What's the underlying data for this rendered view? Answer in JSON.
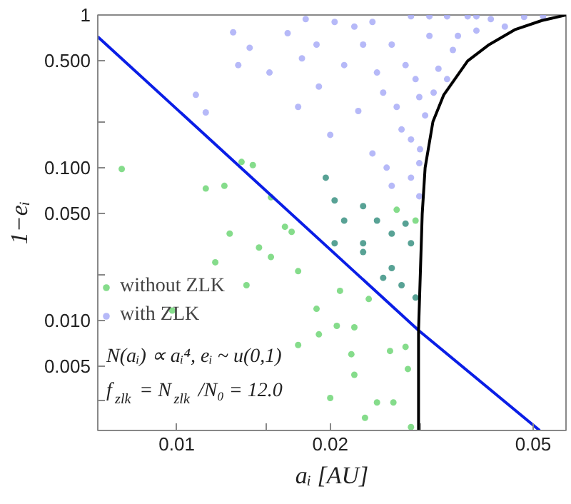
{
  "chart_data": {
    "type": "scatter",
    "xlabel": "aᵢ [AU]",
    "ylabel": "1−eᵢ",
    "log": "xy",
    "grid": false,
    "marker": "circle",
    "legend": "bottom left",
    "xlim": [
      0.007,
      0.058
    ],
    "ylim": [
      0.0019,
      1
    ],
    "xticks": [
      {
        "value": 0.01,
        "label": "0.01"
      },
      {
        "value": 0.015,
        "label": null
      },
      {
        "value": 0.02,
        "label": "0.02"
      },
      {
        "value": 0.03,
        "label": null
      },
      {
        "value": 0.05,
        "label": "0.05"
      }
    ],
    "yticks": [
      {
        "value": 0.003,
        "label": null
      },
      {
        "value": 0.005,
        "label": "0.005"
      },
      {
        "value": 0.01,
        "label": "0.010"
      },
      {
        "value": 0.02,
        "label": null
      },
      {
        "value": 0.05,
        "label": "0.050"
      },
      {
        "value": 0.1,
        "label": "0.100"
      },
      {
        "value": 0.2,
        "label": null
      },
      {
        "value": 0.5,
        "label": "0.500"
      },
      {
        "value": 1,
        "label": "1"
      }
    ],
    "annotations": [
      "N(aᵢ) ∝ aᵢ⁴, eᵢ ~ u(0,1)",
      "f$_{zlk}$ = N$_{zlk}$/N₀ = 12.0"
    ],
    "series": [
      {
        "name": "with ZLK",
        "color": "#a4a8f6",
        "x": [
          0.0109,
          0.0129,
          0.0114,
          0.0139,
          0.0132,
          0.0152,
          0.0165,
          0.0179,
          0.0176,
          0.0188,
          0.0173,
          0.019,
          0.02,
          0.0213,
          0.0223,
          0.0227,
          0.0242,
          0.0254,
          0.0264,
          0.0276,
          0.0288,
          0.0294,
          0.0299,
          0.0307,
          0.0313,
          0.0326,
          0.0339,
          0.0348,
          0.0372,
          0.0387,
          0.0413,
          0.044,
          0.048,
          0.0523,
          0.0258,
          0.027,
          0.0281,
          0.0288,
          0.0299,
          0.03,
          0.0319,
          0.0232,
          0.0247,
          0.0204,
          0.0242,
          0.0313,
          0.0356,
          0.0339,
          0.0387,
          0.0264,
          0.0288,
          0.0299
        ],
        "values": [
          0.3,
          0.77,
          0.23,
          0.61,
          0.47,
          0.42,
          0.76,
          0.94,
          0.52,
          0.64,
          0.25,
          0.34,
          0.164,
          0.47,
          0.84,
          0.235,
          0.124,
          0.31,
          0.64,
          0.178,
          0.98,
          0.38,
          0.107,
          0.22,
          0.73,
          0.445,
          0.98,
          0.59,
          0.98,
          0.79,
          0.94,
          0.84,
          0.97,
          0.98,
          0.1,
          0.25,
          0.47,
          0.153,
          0.29,
          0.132,
          0.31,
          0.64,
          0.42,
          0.9,
          0.9,
          0.98,
          0.73,
          0.38,
          0.98,
          0.076,
          0.086,
          0.065
        ]
      },
      {
        "name": "without ZLK",
        "color": "#66d36e",
        "x": [
          0.0078,
          0.0114,
          0.0124,
          0.0134,
          0.0141,
          0.0127,
          0.0153,
          0.0163,
          0.0168,
          0.0145,
          0.0119,
          0.0137,
          0.0153,
          0.0098,
          0.0173,
          0.0188,
          0.0206,
          0.019,
          0.0173,
          0.0223,
          0.022,
          0.0223,
          0.02,
          0.0234,
          0.0262,
          0.0247,
          0.0266,
          0.0284,
          0.0288,
          0.0281,
          0.0209,
          0.0238,
          0.0232,
          0.0254,
          0.0276,
          0.0294,
          0.0264,
          0.0288,
          0.0196,
          0.0204,
          0.0213,
          0.0232,
          0.0247,
          0.0264,
          0.0281,
          0.0232,
          0.0204,
          0.027,
          0.0294
        ],
        "values": [
          0.098,
          0.073,
          0.076,
          0.109,
          0.104,
          0.037,
          0.064,
          0.041,
          0.038,
          0.03,
          0.024,
          0.017,
          0.026,
          0.0116,
          0.021,
          0.0119,
          0.0092,
          0.0081,
          0.0069,
          0.009,
          0.006,
          0.0044,
          0.0031,
          0.0023,
          0.0063,
          0.0029,
          0.0029,
          0.0048,
          0.002,
          0.0067,
          0.0156,
          0.0138,
          0.028,
          0.019,
          0.017,
          0.0141,
          0.022,
          0.032,
          0.086,
          0.061,
          0.045,
          0.056,
          0.045,
          0.037,
          0.043,
          0.032,
          0.032,
          0.053,
          0.045
        ],
        "colors": [
          "#66d36e",
          "#66d36e",
          "#66d36e",
          "#66d36e",
          "#66d36e",
          "#66d36e",
          "#66d36e",
          "#66d36e",
          "#66d36e",
          "#66d36e",
          "#66d36e",
          "#66d36e",
          "#66d36e",
          "#66d36e",
          "#66d36e",
          "#66d36e",
          "#66d36e",
          "#66d36e",
          "#66d36e",
          "#66d36e",
          "#66d36e",
          "#66d36e",
          "#66d36e",
          "#66d36e",
          "#66d36e",
          "#66d36e",
          "#66d36e",
          "#66d36e",
          "#66d36e",
          "#66d36e",
          "#66d36e",
          "#66d36e",
          "#2e8b7a",
          "#2e8b7a",
          "#2e8b7a",
          "#2e8b7a",
          "#2e8b7a",
          "#2e8b7a",
          "#2e8b7a",
          "#2e8b7a",
          "#2e8b7a",
          "#2e8b7a",
          "#2e8b7a",
          "#2e8b7a",
          "#2e8b7a",
          "#2e8b7a",
          "#2e8b7a",
          "#66d36e",
          "#66d36e"
        ]
      },
      {
        "type": "line",
        "marker": "none",
        "color": "#0a1ee6",
        "x": [
          0.007,
          0.0298,
          0.0515
        ],
        "values": [
          0.72,
          0.0086,
          0.0019
        ]
      },
      {
        "type": "line",
        "marker": "none",
        "color": "#000000",
        "x": [
          0.0298,
          0.0298,
          0.0303,
          0.0307,
          0.0318,
          0.0334,
          0.0372,
          0.041,
          0.046,
          0.052,
          0.058
        ],
        "values": [
          0.0019,
          0.0086,
          0.05,
          0.1,
          0.2,
          0.3,
          0.5,
          0.64,
          0.8,
          0.92,
          1
        ]
      }
    ]
  }
}
